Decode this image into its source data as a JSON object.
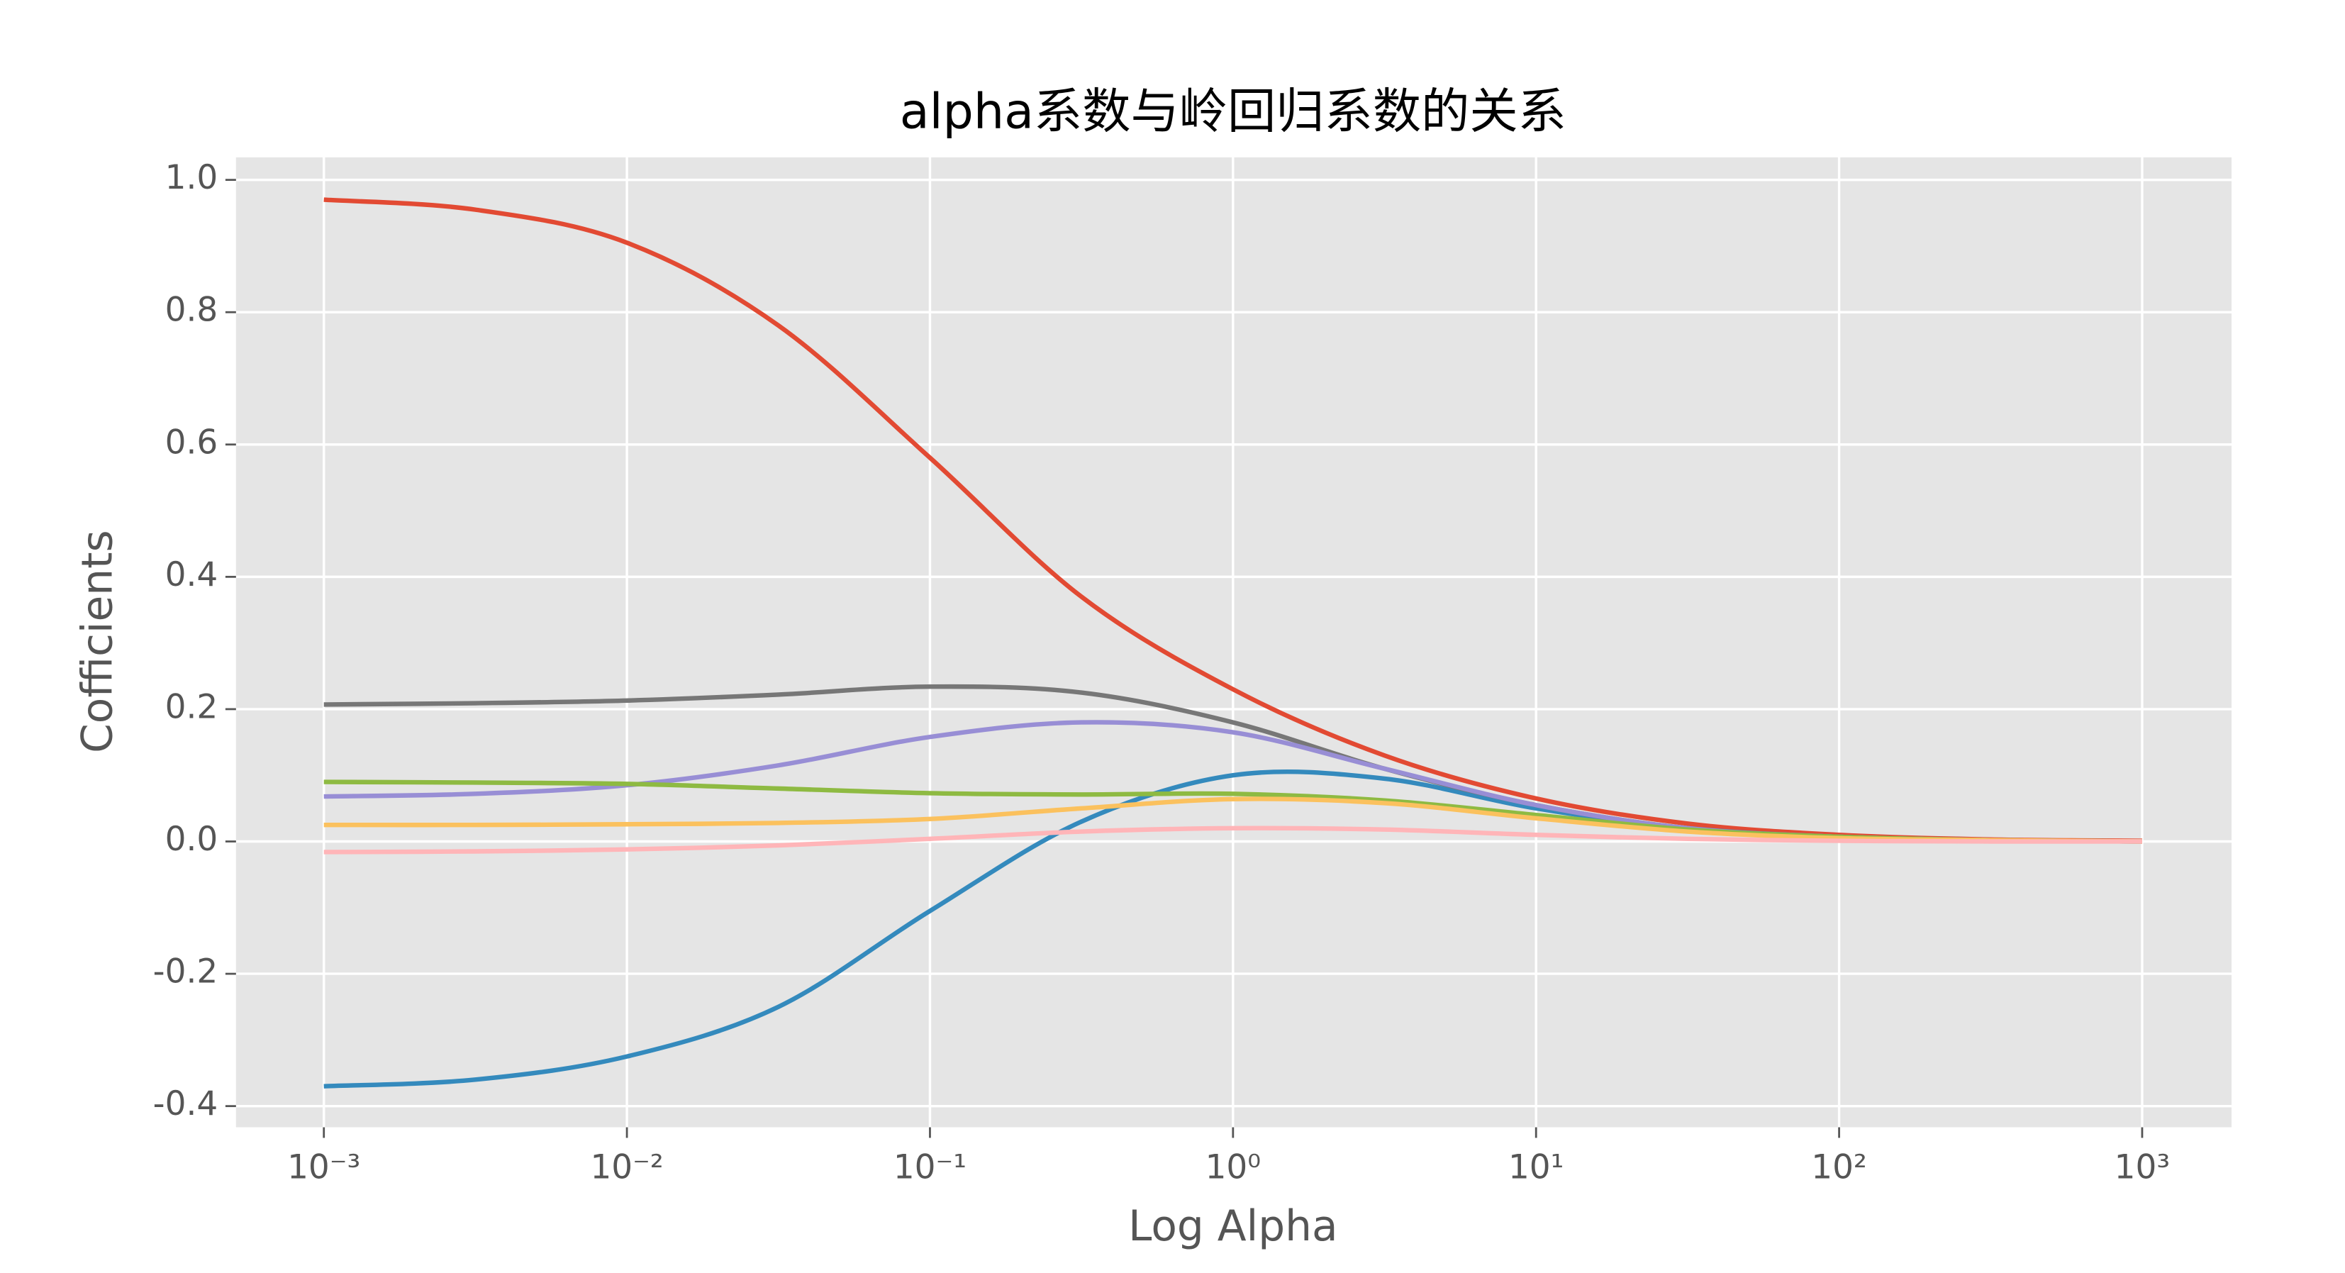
{
  "chart_data": {
    "type": "line",
    "title": "alpha系数与岭回归系数的关系",
    "x_label": "Log Alpha",
    "y_label": "Cofficients",
    "x_scale": "log",
    "grid": true,
    "x": [
      0.001,
      0.00316,
      0.01,
      0.0316,
      0.1,
      0.316,
      1,
      3.16,
      10,
      31.6,
      100,
      316,
      1000
    ],
    "series": [
      {
        "color": "#E24A33",
        "values": [
          0.97,
          0.955,
          0.905,
          0.78,
          0.58,
          0.37,
          0.23,
          0.13,
          0.065,
          0.027,
          0.01,
          0.003,
          0.001
        ]
      },
      {
        "color": "#348ABD",
        "values": [
          -0.37,
          -0.36,
          -0.325,
          -0.25,
          -0.105,
          0.03,
          0.1,
          0.095,
          0.05,
          0.02,
          0.007,
          0.002,
          0.0
        ]
      },
      {
        "color": "#777777",
        "values": [
          0.207,
          0.209,
          0.213,
          0.222,
          0.234,
          0.225,
          0.18,
          0.11,
          0.055,
          0.02,
          0.007,
          0.002,
          0.0
        ]
      },
      {
        "color": "#988ED5",
        "values": [
          0.068,
          0.072,
          0.085,
          0.115,
          0.158,
          0.18,
          0.165,
          0.11,
          0.055,
          0.02,
          0.007,
          0.002,
          0.0
        ]
      },
      {
        "color": "#8EBA42",
        "values": [
          0.09,
          0.089,
          0.087,
          0.08,
          0.073,
          0.071,
          0.072,
          0.062,
          0.04,
          0.018,
          0.007,
          0.002,
          0.0
        ]
      },
      {
        "color": "#FBC15E",
        "values": [
          0.025,
          0.025,
          0.026,
          0.028,
          0.034,
          0.05,
          0.064,
          0.058,
          0.035,
          0.015,
          0.005,
          0.002,
          0.0
        ]
      },
      {
        "color": "#FFB5B8",
        "values": [
          -0.016,
          -0.015,
          -0.012,
          -0.006,
          0.004,
          0.015,
          0.02,
          0.018,
          0.01,
          0.004,
          0.001,
          0.0,
          0.0
        ]
      }
    ],
    "xlim": [
      0.000513,
      1972
    ],
    "ylim": [
      -0.432,
      1.034
    ],
    "xticks": [
      {
        "value": 0.001,
        "label": "10⁻³"
      },
      {
        "value": 0.01,
        "label": "10⁻²"
      },
      {
        "value": 0.1,
        "label": "10⁻¹"
      },
      {
        "value": 1,
        "label": "10⁰"
      },
      {
        "value": 10,
        "label": "10¹"
      },
      {
        "value": 100,
        "label": "10²"
      },
      {
        "value": 1000,
        "label": "10³"
      }
    ],
    "yticks": [
      {
        "value": -0.4,
        "label": "-0.4"
      },
      {
        "value": -0.2,
        "label": "-0.2"
      },
      {
        "value": 0,
        "label": "0.0"
      },
      {
        "value": 0.2,
        "label": "0.2"
      },
      {
        "value": 0.4,
        "label": "0.4"
      },
      {
        "value": 0.6,
        "label": "0.6"
      },
      {
        "value": 0.8,
        "label": "0.8"
      },
      {
        "value": 1.0,
        "label": "1.0"
      }
    ]
  }
}
